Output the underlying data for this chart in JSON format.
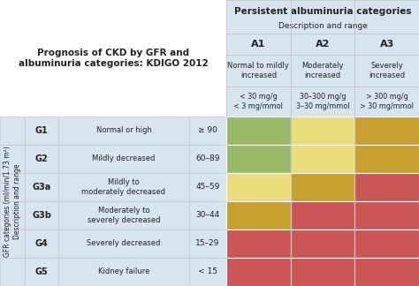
{
  "title_left": "Prognosis of CKD by GFR and\nalbuminuria categories: KDIGO 2012",
  "col_header_title": "Persistent albuminuria categories",
  "col_header_subtitle": "Description and range",
  "col_labels": [
    "A1",
    "A2",
    "A3"
  ],
  "col_desc": [
    "Normal to mildly\nincreased",
    "Moderately\nincreased",
    "Severely\nincreased"
  ],
  "col_range": [
    "< 30 mg/g\n< 3 mg/mmol",
    "30–300 mg/g\n3–30 mg/mmol",
    "> 300 mg/g\n> 30 mg/mmol"
  ],
  "row_header_title": "GFR categories (ml/min/1.73 m²)\nDescription and range",
  "row_labels": [
    "G1",
    "G2",
    "G3a",
    "G3b",
    "G4",
    "G5"
  ],
  "row_desc": [
    "Normal or high",
    "Mildly decreased",
    "Mildly to\nmoderately decreased",
    "Moderately to\nseverely decreased",
    "Severely decreased",
    "Kidney failure"
  ],
  "row_range": [
    "≥ 90",
    "60–89",
    "45–59",
    "30–44",
    "15–29",
    "< 15"
  ],
  "grid_colors": [
    [
      "#9aba6a",
      "#eade7a",
      "#c8a030"
    ],
    [
      "#9aba6a",
      "#eade7a",
      "#c8a030"
    ],
    [
      "#eade7a",
      "#c8a030",
      "#cc5555"
    ],
    [
      "#c8a030",
      "#cc5555",
      "#cc5555"
    ],
    [
      "#cc5555",
      "#cc5555",
      "#cc5555"
    ],
    [
      "#cc5555",
      "#cc5555",
      "#cc5555"
    ]
  ],
  "header_bg": "#d8e4f0",
  "background": "#ffffff",
  "border_color": "#c8c8c8"
}
